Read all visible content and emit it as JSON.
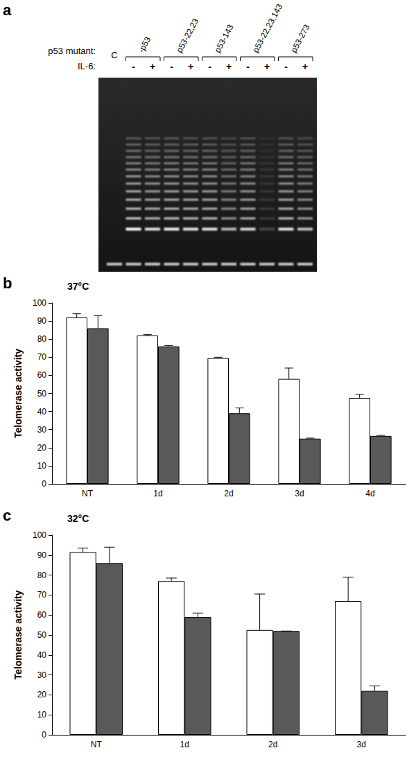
{
  "gel": {
    "panel_label": "a",
    "row_labels": [
      "p53 mutant:",
      "IL-6:"
    ],
    "control": {
      "label": "C",
      "intensity": 0
    },
    "groups": [
      {
        "label": "-p53",
        "lanes": [
          {
            "il6": "-",
            "intensity": 1.0
          },
          {
            "il6": "+",
            "intensity": 0.9
          }
        ]
      },
      {
        "label": "p53-22,23",
        "lanes": [
          {
            "il6": "-",
            "intensity": 0.95
          },
          {
            "il6": "+",
            "intensity": 0.9
          }
        ]
      },
      {
        "label": "p53-143",
        "lanes": [
          {
            "il6": "-",
            "intensity": 0.9
          },
          {
            "il6": "+",
            "intensity": 0.7
          }
        ]
      },
      {
        "label": "p53-22,23,143",
        "lanes": [
          {
            "il6": "-",
            "intensity": 0.85
          },
          {
            "il6": "+",
            "intensity": 0.2
          }
        ]
      },
      {
        "label": "p53-273",
        "lanes": [
          {
            "il6": "-",
            "intensity": 0.9
          },
          {
            "il6": "+",
            "intensity": 0.75
          }
        ]
      }
    ]
  },
  "chart_data": [
    {
      "type": "bar",
      "panel_label": "b",
      "title": "37°C",
      "ylabel": "Telomerase activity",
      "categories": [
        "NT",
        "1d",
        "2d",
        "3d",
        "4d"
      ],
      "series": [
        {
          "color": "#ffffff",
          "values": [
            92,
            82,
            69.5,
            58,
            47.5
          ],
          "errors": [
            2,
            0.5,
            0.5,
            6,
            2
          ]
        },
        {
          "color": "#595959",
          "values": [
            86,
            76,
            39,
            25,
            26.5
          ],
          "errors": [
            7,
            0.5,
            3,
            0.3,
            0.3
          ]
        }
      ],
      "ylim": [
        0,
        100
      ],
      "yticks": [
        0,
        10,
        20,
        30,
        40,
        50,
        60,
        70,
        80,
        90,
        100
      ],
      "grid": false
    },
    {
      "type": "bar",
      "panel_label": "c",
      "title": "32°C",
      "ylabel": "Telomerase activity",
      "categories": [
        "NT",
        "1d",
        "2d",
        "3d"
      ],
      "series": [
        {
          "color": "#ffffff",
          "values": [
            91.5,
            77,
            52.5,
            67
          ],
          "errors": [
            2,
            1.5,
            18,
            12
          ]
        },
        {
          "color": "#595959",
          "values": [
            86,
            59,
            52,
            22
          ],
          "errors": [
            8,
            2,
            0,
            2.5
          ]
        }
      ],
      "ylim": [
        0,
        100
      ],
      "yticks": [
        0,
        10,
        20,
        30,
        40,
        50,
        60,
        70,
        80,
        90,
        100
      ],
      "grid": false
    }
  ]
}
